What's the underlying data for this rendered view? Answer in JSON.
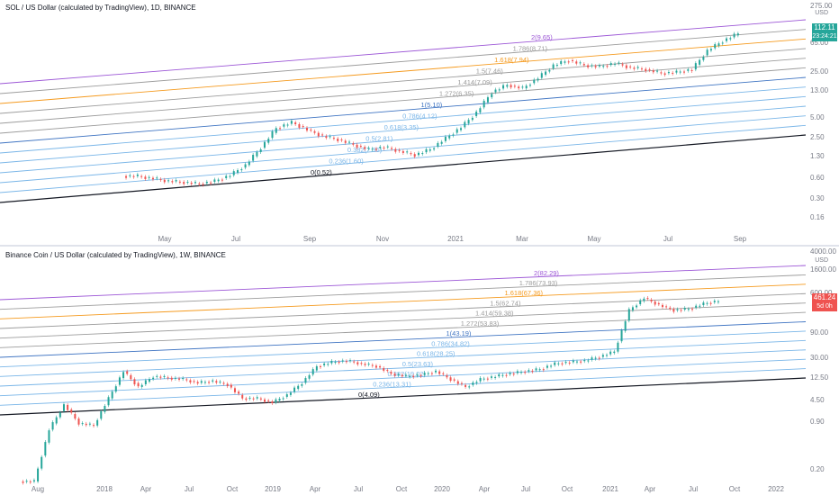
{
  "chart_data": [
    {
      "type": "candlestick",
      "title": "SOL / US Dollar (calculated by TradingView), 1D, BINANCE",
      "yscale": "log",
      "ylim": [
        0.1,
        275
      ],
      "y_ticks": [
        "275.00",
        "65.00",
        "25.00",
        "13.00",
        "5.00",
        "2.50",
        "1.30",
        "0.60",
        "0.30",
        "0.16"
      ],
      "unit": "USD",
      "x_ticks": [
        "May",
        "Jul",
        "Sep",
        "Nov",
        "2021",
        "Mar",
        "May",
        "Jul",
        "Sep"
      ],
      "last_price": "112.11",
      "countdown": "23:24:21",
      "fib_levels": [
        {
          "label": "2(9.65)",
          "color": "#9c56d6"
        },
        {
          "label": "1.786(8.71)",
          "color": "#9c9c9c"
        },
        {
          "label": "1.618(7.94)",
          "color": "#f59a1e"
        },
        {
          "label": "1.5(7.46)",
          "color": "#9c9c9c"
        },
        {
          "label": "1.414(7.09)",
          "color": "#9c9c9c"
        },
        {
          "label": "1.272(6.35)",
          "color": "#9c9c9c"
        },
        {
          "label": "1(5.10)",
          "color": "#3f74c2"
        },
        {
          "label": "0.786(4.12)",
          "color": "#7ab6e8"
        },
        {
          "label": "0.618(3.35)",
          "color": "#7ab6e8"
        },
        {
          "label": "0.5(2.81)",
          "color": "#7ab6e8"
        },
        {
          "label": "0.382(2.36)",
          "color": "#7ab6e8"
        },
        {
          "label": "0.236(1.60)",
          "color": "#7ab6e8"
        },
        {
          "label": "0(0.52)",
          "color": "#131722"
        }
      ],
      "series_close": [
        0.6,
        0.55,
        0.5,
        0.48,
        0.45,
        0.5,
        0.62,
        0.9,
        1.7,
        3.5,
        4.3,
        3.3,
        2.6,
        2.3,
        1.9,
        1.6,
        1.75,
        1.5,
        1.3,
        1.6,
        2.4,
        3.6,
        6.2,
        13,
        17,
        15,
        22,
        35,
        42,
        35,
        33,
        38,
        32,
        30,
        26,
        27,
        30,
        60,
        85,
        112
      ]
    },
    {
      "type": "candlestick",
      "title": "Binance Coin / US Dollar (calculated by TradingView), 1W, BINANCE",
      "yscale": "log",
      "ylim": [
        0.15,
        4000
      ],
      "y_ticks": [
        "4000.00",
        "1600.00",
        "600.00",
        "90.00",
        "30.00",
        "12.50",
        "4.50",
        "0.90",
        "0.20"
      ],
      "unit": "USD",
      "x_ticks": [
        "Aug",
        "2018",
        "Apr",
        "Jul",
        "Oct",
        "2019",
        "Apr",
        "Jul",
        "Oct",
        "2020",
        "Apr",
        "Jul",
        "Oct",
        "2021",
        "Apr",
        "Jul",
        "Oct",
        "2022"
      ],
      "last_price": "461.24",
      "countdown": "5d 0h",
      "fib_levels": [
        {
          "label": "2(82.29)",
          "color": "#9c56d6"
        },
        {
          "label": "1.786(73.93)",
          "color": "#9c9c9c"
        },
        {
          "label": "1.618(67.36)",
          "color": "#f59a1e"
        },
        {
          "label": "1.5(62.74)",
          "color": "#9c9c9c"
        },
        {
          "label": "1.414(59.38)",
          "color": "#9c9c9c"
        },
        {
          "label": "1.272(53.83)",
          "color": "#9c9c9c"
        },
        {
          "label": "1(43.19)",
          "color": "#3f74c2"
        },
        {
          "label": "0.786(34.82)",
          "color": "#7ab6e8"
        },
        {
          "label": "0.618(28.25)",
          "color": "#7ab6e8"
        },
        {
          "label": "0.5(23.63)",
          "color": "#7ab6e8"
        },
        {
          "label": "0.382(19.02)",
          "color": "#7ab6e8"
        },
        {
          "label": "0.236(13.31)",
          "color": "#7ab6e8"
        },
        {
          "label": "0(4.09)",
          "color": "#131722"
        }
      ],
      "series_close": [
        0.15,
        1.5,
        4.5,
        2.0,
        1.8,
        6,
        20,
        10,
        16,
        15,
        14,
        12,
        13,
        11,
        6,
        6,
        5,
        7,
        12,
        25,
        30,
        32,
        28,
        25,
        18,
        16,
        17,
        20,
        14,
        10,
        14,
        16,
        18,
        20,
        22,
        28,
        30,
        32,
        38,
        48,
        300,
        520,
        380,
        300,
        320,
        400,
        461
      ]
    }
  ]
}
